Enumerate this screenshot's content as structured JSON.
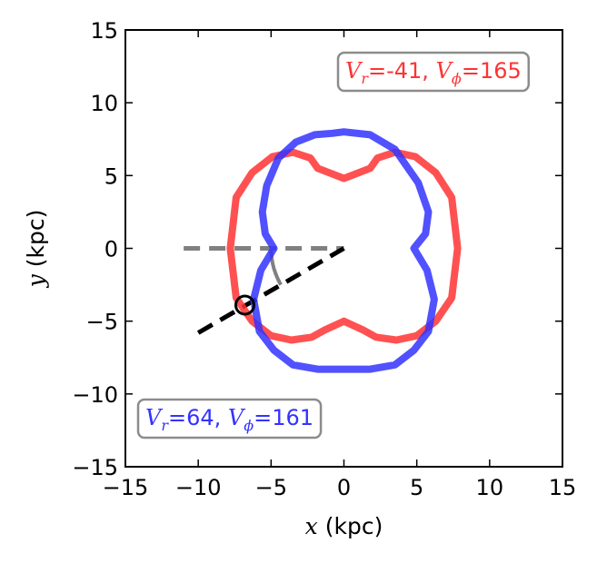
{
  "chart_data": {
    "type": "line",
    "xlabel": {
      "symbol": "x",
      "unit": " (kpc)"
    },
    "ylabel": {
      "symbol": "y",
      "unit": " (kpc)"
    },
    "xlim": [
      -15,
      15
    ],
    "ylim": [
      -15,
      15
    ],
    "xticks": [
      -15,
      -10,
      -5,
      0,
      5,
      10,
      15
    ],
    "yticks": [
      -15,
      -10,
      -5,
      0,
      5,
      10,
      15
    ],
    "xtick_labels": [
      "−15",
      "−10",
      "−5",
      "0",
      "5",
      "10",
      "15"
    ],
    "ytick_labels": [
      "−15",
      "−10",
      "−5",
      "0",
      "5",
      "10",
      "15"
    ],
    "grid": false,
    "colors": {
      "red": "#ff3333",
      "blue": "#3333ff",
      "gray": "#808080",
      "black": "#000000"
    },
    "series": [
      {
        "color": "red",
        "x": [
          0,
          1.8,
          2.3,
          3.5,
          4.9,
          6.3,
          7.4,
          7.8,
          7.4,
          6.3,
          5.0,
          3.6,
          2.2,
          1.3,
          0,
          -1.3,
          -2.2,
          -3.6,
          -5.0,
          -6.3,
          -7.4,
          -7.8,
          -7.4,
          -6.3,
          -4.9,
          -3.5,
          -2.3,
          -1.8,
          0
        ],
        "y": [
          4.8,
          5.5,
          6.2,
          6.6,
          6.3,
          5.2,
          3.5,
          0,
          -3.4,
          -5.0,
          -6.0,
          -6.3,
          -6.1,
          -5.6,
          -5.0,
          -5.6,
          -6.1,
          -6.3,
          -6.0,
          -5.0,
          -3.4,
          0,
          3.5,
          5.2,
          6.3,
          6.6,
          6.2,
          5.5,
          4.8
        ]
      },
      {
        "color": "blue",
        "x": [
          0,
          1.8,
          3.5,
          5.1,
          5.8,
          5.6,
          4.8,
          5.7,
          6.2,
          5.8,
          4.8,
          3.5,
          1.8,
          0,
          -1.8,
          -3.5,
          -4.8,
          -5.8,
          -6.2,
          -5.7,
          -4.8,
          -5.4,
          -5.6,
          -5.3,
          -4.5,
          -3.3,
          -2.0,
          -0.8,
          0
        ],
        "y": [
          8.0,
          7.8,
          6.8,
          4.5,
          2.5,
          1.0,
          0.0,
          -1.5,
          -3.5,
          -5.7,
          -7.0,
          -8.0,
          -8.3,
          -8.3,
          -8.3,
          -8.0,
          -7.0,
          -5.7,
          -3.5,
          -1.5,
          0.0,
          1.0,
          2.5,
          4.3,
          6.2,
          7.3,
          7.8,
          7.9,
          8.0
        ]
      }
    ],
    "reference_lines": [
      {
        "color": "gray",
        "style": "dashed",
        "x": [
          -11,
          0
        ],
        "y": [
          0,
          0
        ]
      },
      {
        "color": "black",
        "style": "dashed",
        "x": [
          -10,
          0
        ],
        "y": [
          -5.8,
          0
        ]
      }
    ],
    "arc": {
      "color": "gray",
      "radius": 5,
      "from_deg": 180,
      "to_deg": 210
    },
    "marker": {
      "type": "open-circle",
      "x": -6.8,
      "y": -3.9,
      "color": "black"
    },
    "annotations": [
      {
        "position": "top-right",
        "color": "red",
        "sym1": "V",
        "sub1": "r",
        "val1": "=-41, ",
        "sym2": "V",
        "sub2": "ϕ",
        "val2": "=165"
      },
      {
        "position": "bottom-left",
        "color": "blue",
        "sym1": "V",
        "sub1": "r",
        "val1": "=64, ",
        "sym2": "V",
        "sub2": "ϕ",
        "val2": "=161"
      }
    ]
  }
}
